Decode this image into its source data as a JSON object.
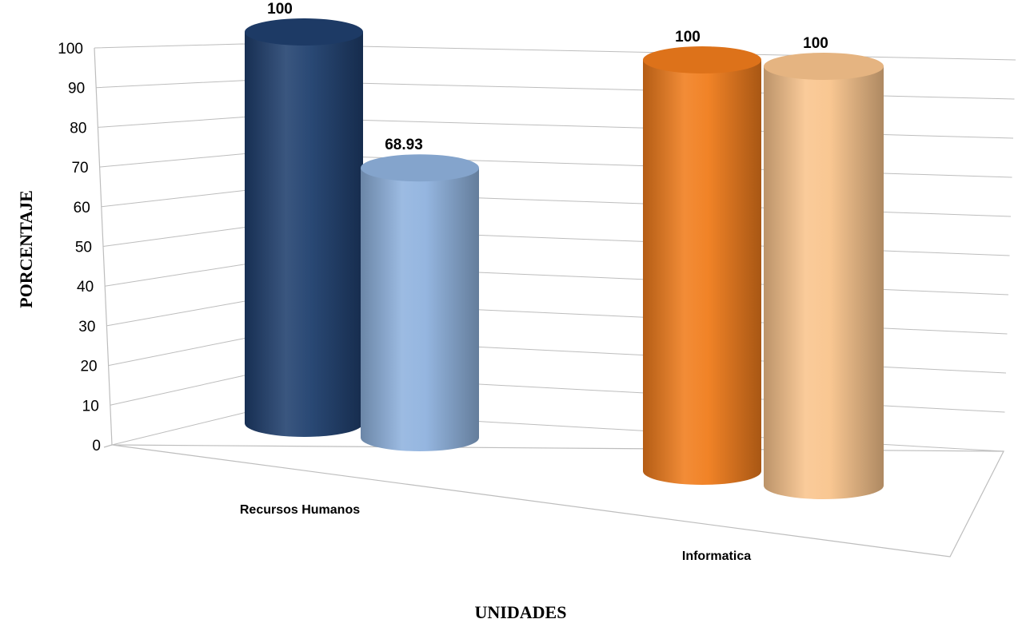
{
  "chart_data": {
    "type": "bar",
    "style": "3d-cylinder",
    "title": "",
    "xlabel": "UNIDADES",
    "ylabel": "PORCENTAJE",
    "ylim": [
      0,
      100
    ],
    "yticks": [
      0,
      10,
      20,
      30,
      40,
      50,
      60,
      70,
      80,
      90,
      100
    ],
    "grid": true,
    "legend": "none",
    "categories": [
      "Recursos Humanos",
      "Informatica"
    ],
    "bars": [
      {
        "category": "Recursos Humanos",
        "value": 100,
        "label": "100",
        "color": "#1f3f6e"
      },
      {
        "category": "Recursos Humanos",
        "value": 68.93,
        "label": "68.93",
        "color": "#8fb2de"
      },
      {
        "category": "Informatica",
        "value": 100,
        "label": "100",
        "color": "#f07c1c"
      },
      {
        "category": "Informatica",
        "value": 100,
        "label": "100",
        "color": "#f9c48c"
      }
    ]
  }
}
